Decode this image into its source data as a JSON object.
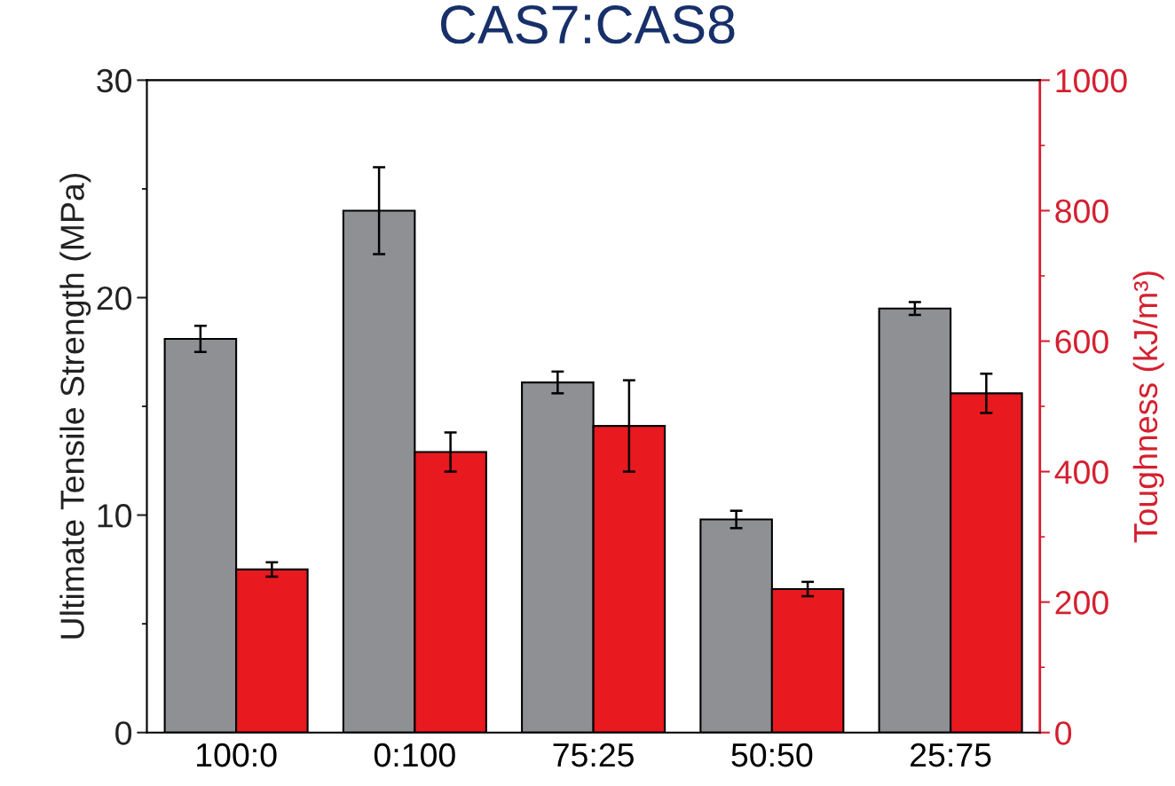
{
  "chart_data": {
    "type": "bar",
    "title": "CAS7:CAS8",
    "ylabel": "Ultimate Tensile Strength (MPa)",
    "y2label": "Toughness (kJ/m³)",
    "categories": [
      "100:0",
      "0:100",
      "75:25",
      "50:50",
      "25:75"
    ],
    "series": [
      {
        "color": "#8e9094",
        "values": [
          18.1,
          24.0,
          16.1,
          9.8,
          19.5
        ],
        "errors": [
          0.6,
          2.0,
          0.5,
          0.4,
          0.3
        ]
      },
      {
        "color": "#e8191f",
        "values": [
          250,
          430,
          470,
          220,
          520
        ],
        "errors": [
          11,
          30,
          70,
          11,
          30
        ],
        "axis": "y2"
      }
    ],
    "ylim": [
      0,
      30
    ],
    "yticks": [
      0,
      10,
      20,
      30
    ],
    "y2lim": [
      0,
      1000
    ],
    "y2ticks": [
      0,
      200,
      400,
      600,
      800,
      1000
    ],
    "grid": false,
    "legend": false
  }
}
